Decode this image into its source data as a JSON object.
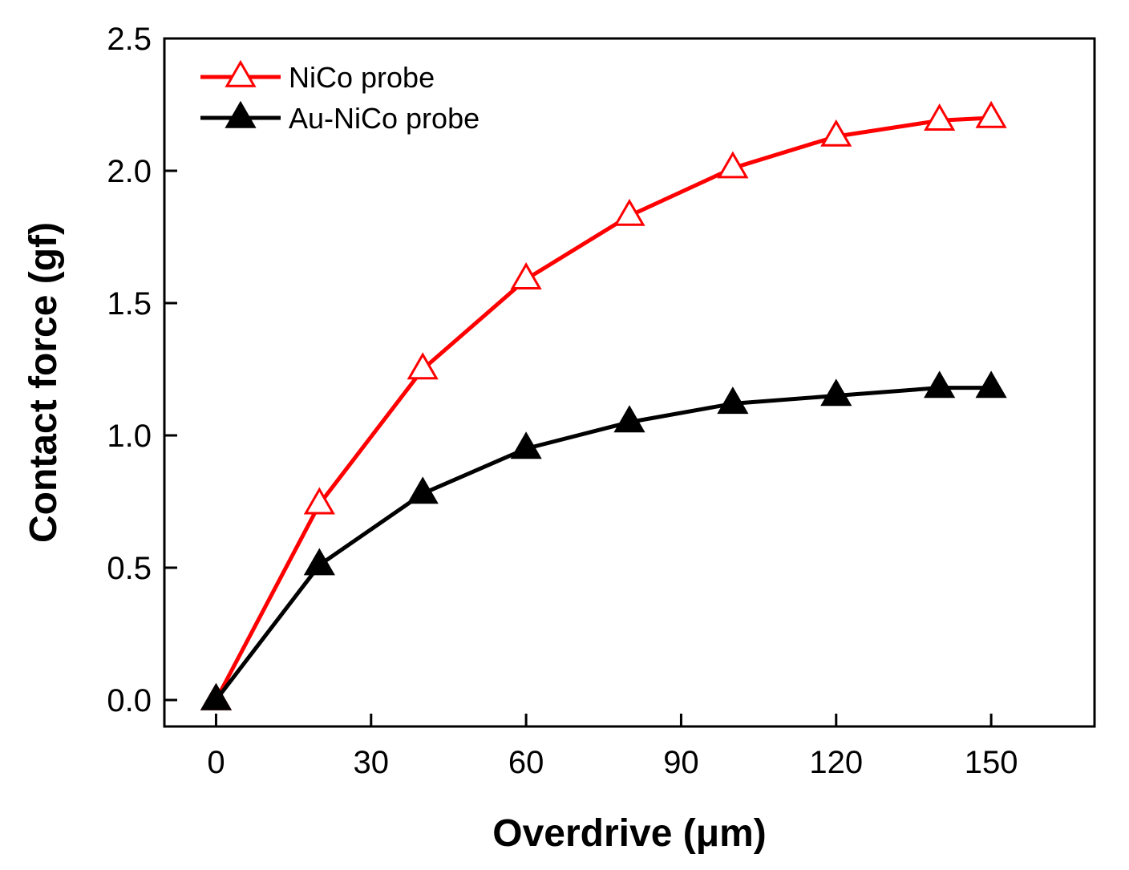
{
  "chart_data": {
    "type": "line",
    "title": "",
    "xlabel": "Overdrive (μm)",
    "ylabel": "Contact force (gf)",
    "xlim": [
      -10,
      170
    ],
    "ylim": [
      -0.1,
      2.5
    ],
    "xticks": [
      0,
      30,
      60,
      90,
      120,
      150
    ],
    "yticks": [
      0.0,
      0.5,
      1.0,
      1.5,
      2.0,
      2.5
    ],
    "xtick_labels": [
      "0",
      "30",
      "60",
      "90",
      "120",
      "150"
    ],
    "ytick_labels": [
      "0.0",
      "0.5",
      "1.0",
      "1.5",
      "2.0",
      "2.5"
    ],
    "x": [
      0,
      20,
      40,
      60,
      80,
      100,
      120,
      140,
      150
    ],
    "legend_position": "top-left",
    "series": [
      {
        "name": "NiCo probe",
        "color": "#ff0000",
        "marker": "open-triangle",
        "values": [
          0.0,
          0.74,
          1.25,
          1.59,
          1.83,
          2.01,
          2.13,
          2.19,
          2.2
        ]
      },
      {
        "name": "Au-NiCo probe",
        "color": "#000000",
        "marker": "filled-triangle",
        "values": [
          0.0,
          0.51,
          0.78,
          0.95,
          1.05,
          1.12,
          1.15,
          1.18,
          1.18
        ]
      }
    ]
  }
}
